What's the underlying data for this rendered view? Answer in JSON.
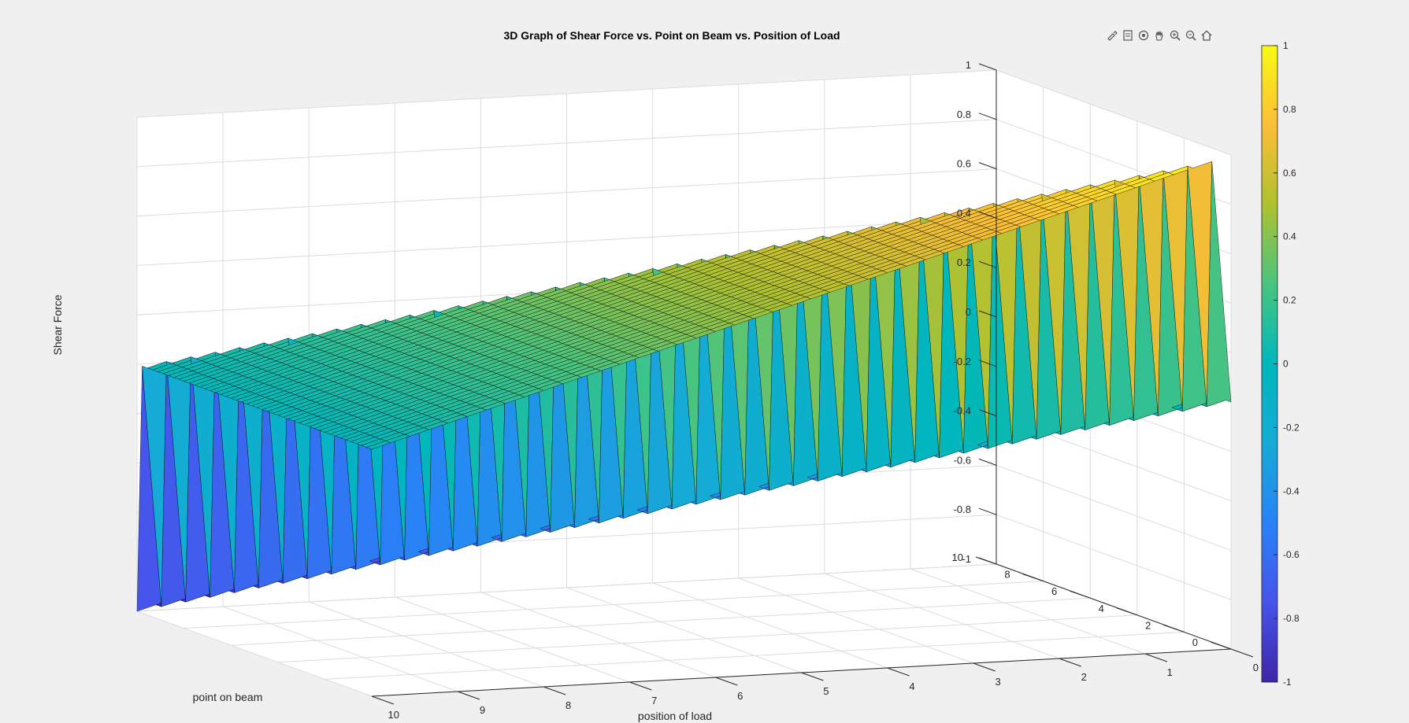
{
  "figure": {
    "background": "#f0f0f0",
    "toolbar": [
      {
        "name": "brush-icon"
      },
      {
        "name": "datatip-icon"
      },
      {
        "name": "rotate-icon"
      },
      {
        "name": "pan-icon"
      },
      {
        "name": "zoom-in-icon"
      },
      {
        "name": "zoom-out-icon"
      },
      {
        "name": "home-icon"
      }
    ]
  },
  "chart_data": {
    "type": "surface",
    "title": "3D Graph of Shear Force vs. Point on Beam vs. Position of Load",
    "xlabel": "position of load",
    "ylabel": "point on beam",
    "zlabel": "Shear Force",
    "xlim": [
      0,
      10
    ],
    "ylim": [
      0,
      10
    ],
    "zlim": [
      -1,
      1
    ],
    "xticks": [
      "10",
      "9",
      "8",
      "7",
      "6",
      "5",
      "4",
      "3",
      "2",
      "1",
      "0"
    ],
    "yticks": [
      "0",
      "2",
      "4",
      "6",
      "8",
      "10"
    ],
    "zticks": [
      "1",
      "0.8",
      "0.6",
      "0.4",
      "0.2",
      "0",
      "-0.2",
      "-0.4",
      "-0.6",
      "-0.8",
      "-1"
    ],
    "function": "beam length L = 10; load P = 1 at position a; shear V(x) = 1 - a/L for x < a, V(x) = -a/L for x > a",
    "grid": true,
    "colormap": "parula",
    "colorbar": {
      "ticks": [
        "1",
        "0.8",
        "0.6",
        "0.4",
        "0.2",
        "0",
        "-0.2",
        "-0.4",
        "-0.6",
        "-0.8",
        "-1"
      ],
      "limits": [
        -1,
        1
      ],
      "location": "right"
    }
  }
}
